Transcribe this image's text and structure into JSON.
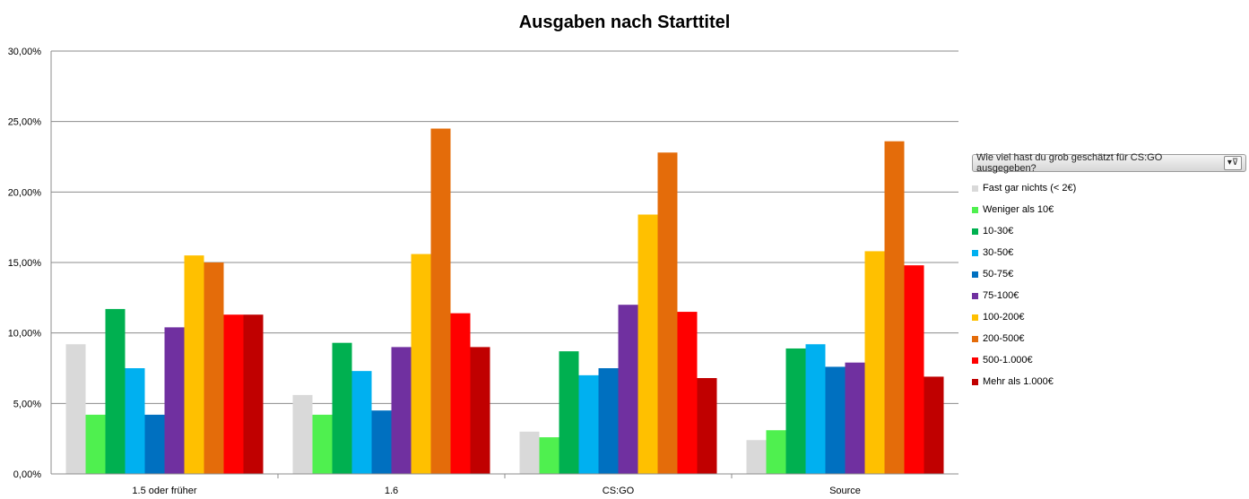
{
  "chart_data": {
    "type": "bar",
    "title": "Ausgaben nach Starttitel",
    "xlabel": "",
    "ylabel": "",
    "ylim": [
      0,
      30
    ],
    "yticks": [
      "0,00%",
      "5,00%",
      "10,00%",
      "15,00%",
      "20,00%",
      "25,00%",
      "30,00%"
    ],
    "grid": true,
    "legend_position": "right",
    "legend_header": "Wie viel hast du grob geschätzt für CS:GO ausgegeben?",
    "categories": [
      "1.5 oder früher",
      "1.6",
      "CS:GO",
      "Source"
    ],
    "series": [
      {
        "name": "Fast gar nichts (< 2€)",
        "color": "#d9d9d9",
        "values": [
          9.2,
          5.6,
          3.0,
          2.4
        ]
      },
      {
        "name": "Weniger als 10€",
        "color": "#4ff04f",
        "values": [
          4.2,
          4.2,
          2.6,
          3.1
        ]
      },
      {
        "name": "10-30€",
        "color": "#00b050",
        "values": [
          11.7,
          9.3,
          8.7,
          8.9
        ]
      },
      {
        "name": "30-50€",
        "color": "#00b0f0",
        "values": [
          7.5,
          7.3,
          7.0,
          9.2
        ]
      },
      {
        "name": "50-75€",
        "color": "#0070c0",
        "values": [
          4.2,
          4.5,
          7.5,
          7.6
        ]
      },
      {
        "name": "75-100€",
        "color": "#7030a0",
        "values": [
          10.4,
          9.0,
          12.0,
          7.9
        ]
      },
      {
        "name": "100-200€",
        "color": "#ffc000",
        "values": [
          15.5,
          15.6,
          18.4,
          15.8
        ]
      },
      {
        "name": "200-500€",
        "color": "#e46c0a",
        "values": [
          15.0,
          24.5,
          22.8,
          23.6
        ]
      },
      {
        "name": "500-1.000€",
        "color": "#ff0000",
        "values": [
          11.3,
          11.4,
          11.5,
          14.8
        ]
      },
      {
        "name": "Mehr als 1.000€",
        "color": "#c00000",
        "values": [
          11.3,
          9.0,
          6.8,
          6.9
        ]
      }
    ]
  },
  "icons": {
    "filter": "filter-icon"
  }
}
